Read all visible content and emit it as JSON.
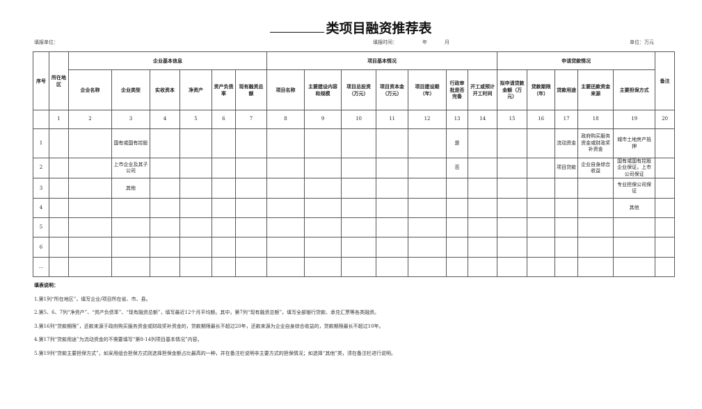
{
  "title": {
    "blank": "",
    "text": "类项目融资推荐表"
  },
  "meta": {
    "unit_label": "填报单位：",
    "time_label": "填报时间：",
    "year": "年",
    "month": "月",
    "currency_unit": "单位：万元"
  },
  "table": {
    "col_seq": "序号",
    "col_region": "所在地区",
    "col_remark": "备注",
    "groups": [
      "企业基本信息",
      "项目基本情况",
      "申请贷款情况"
    ],
    "headers": [
      "企业名称",
      "企业类型",
      "实收资本",
      "净资产",
      "资产负债率",
      "现有融资总额",
      "项目名称",
      "主要建设内容和规模",
      "项目总投资（万元）",
      "项目资本金（万元）",
      "项目建设期（年）",
      "行政审批是否完备",
      "开工或预计开工时间",
      "拟申请贷款金额（万元）",
      "贷款期限（年）",
      "贷款用途",
      "主要还款资金来源",
      "主要担保方式"
    ],
    "numbers": [
      "",
      "1",
      "2",
      "3",
      "4",
      "5",
      "6",
      "7",
      "8",
      "9",
      "10",
      "11",
      "12",
      "13",
      "14",
      "15",
      "16",
      "17",
      "18",
      "19",
      "20"
    ],
    "rows": [
      [
        "1",
        "",
        "",
        "国有或国有控股",
        "",
        "",
        "",
        "",
        "",
        "",
        "",
        "",
        "",
        "是",
        "",
        "",
        "",
        "流动资金",
        "政府购买服务资金或财政奖补资金",
        "城市土地房产抵押",
        ""
      ],
      [
        "2",
        "",
        "",
        "上市企业及其子公司",
        "",
        "",
        "",
        "",
        "",
        "",
        "",
        "",
        "",
        "否",
        "",
        "",
        "",
        "项目贷款",
        "企业自身综合收益",
        "国有或国有控股企业保证，上市公司保证",
        ""
      ],
      [
        "3",
        "",
        "",
        "其他",
        "",
        "",
        "",
        "",
        "",
        "",
        "",
        "",
        "",
        "",
        "",
        "",
        "",
        "",
        "",
        "专业担保公司保证",
        ""
      ],
      [
        "4",
        "",
        "",
        "",
        "",
        "",
        "",
        "",
        "",
        "",
        "",
        "",
        "",
        "",
        "",
        "",
        "",
        "",
        "",
        "其他",
        ""
      ],
      [
        "5",
        "",
        "",
        "",
        "",
        "",
        "",
        "",
        "",
        "",
        "",
        "",
        "",
        "",
        "",
        "",
        "",
        "",
        "",
        "",
        ""
      ],
      [
        "6",
        "",
        "",
        "",
        "",
        "",
        "",
        "",
        "",
        "",
        "",
        "",
        "",
        "",
        "",
        "",
        "",
        "",
        "",
        "",
        ""
      ],
      [
        "…",
        "",
        "",
        "",
        "",
        "",
        "",
        "",
        "",
        "",
        "",
        "",
        "",
        "",
        "",
        "",
        "",
        "",
        "",
        "",
        ""
      ]
    ]
  },
  "notes": {
    "title": "填表说明：",
    "items": [
      "1.第1列“所在地区”，填写企业/项目所在省、市、县。",
      "2.第5、6、7列“净资产”、“资产负债率”、“现有融资总额”，填写最近12个月平均额。其中，第7列“现有融资总额”，填写全部银行贷款、承兑汇票等各类融资。",
      "3.第16列“贷款期限”，还款来源于政府购买服务资金或财政奖补资金的，贷款期限最长不超过20年，还款来源为企业自身综合收益的，贷款期限最长不超过10年。",
      "4.第17列“贷款用途”为流动资金的不需要填写“第8-14列项目基本情况”内容。",
      "5.第19列“贷款主要担保方式”，如采用组合担保方式则选择担保金额占比最高的一种，并在备注栏说明非主要方式的担保情况；如选择“其他”类，须在备注栏进行说明。"
    ]
  }
}
